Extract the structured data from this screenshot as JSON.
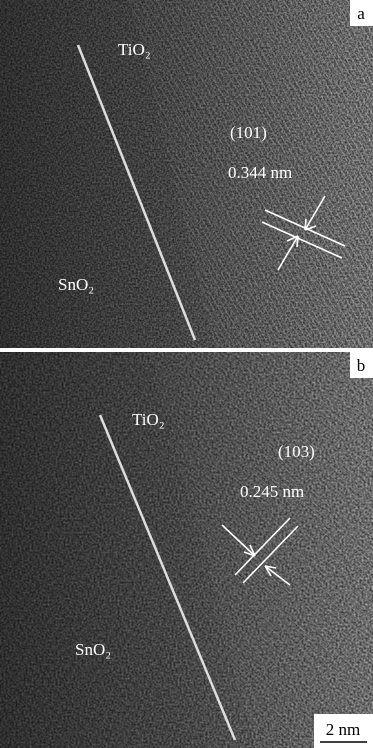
{
  "panels": [
    {
      "label": "a",
      "phase_top": "TiO₂",
      "phase_bottom": "SnO₂",
      "plane": "(101)",
      "spacing": "0.344 nm"
    },
    {
      "label": "b",
      "phase_top": "TiO₂",
      "phase_bottom": "SnO₂",
      "plane": "(103)",
      "spacing": "0.245 nm"
    }
  ],
  "scale_bar": "2 nm"
}
